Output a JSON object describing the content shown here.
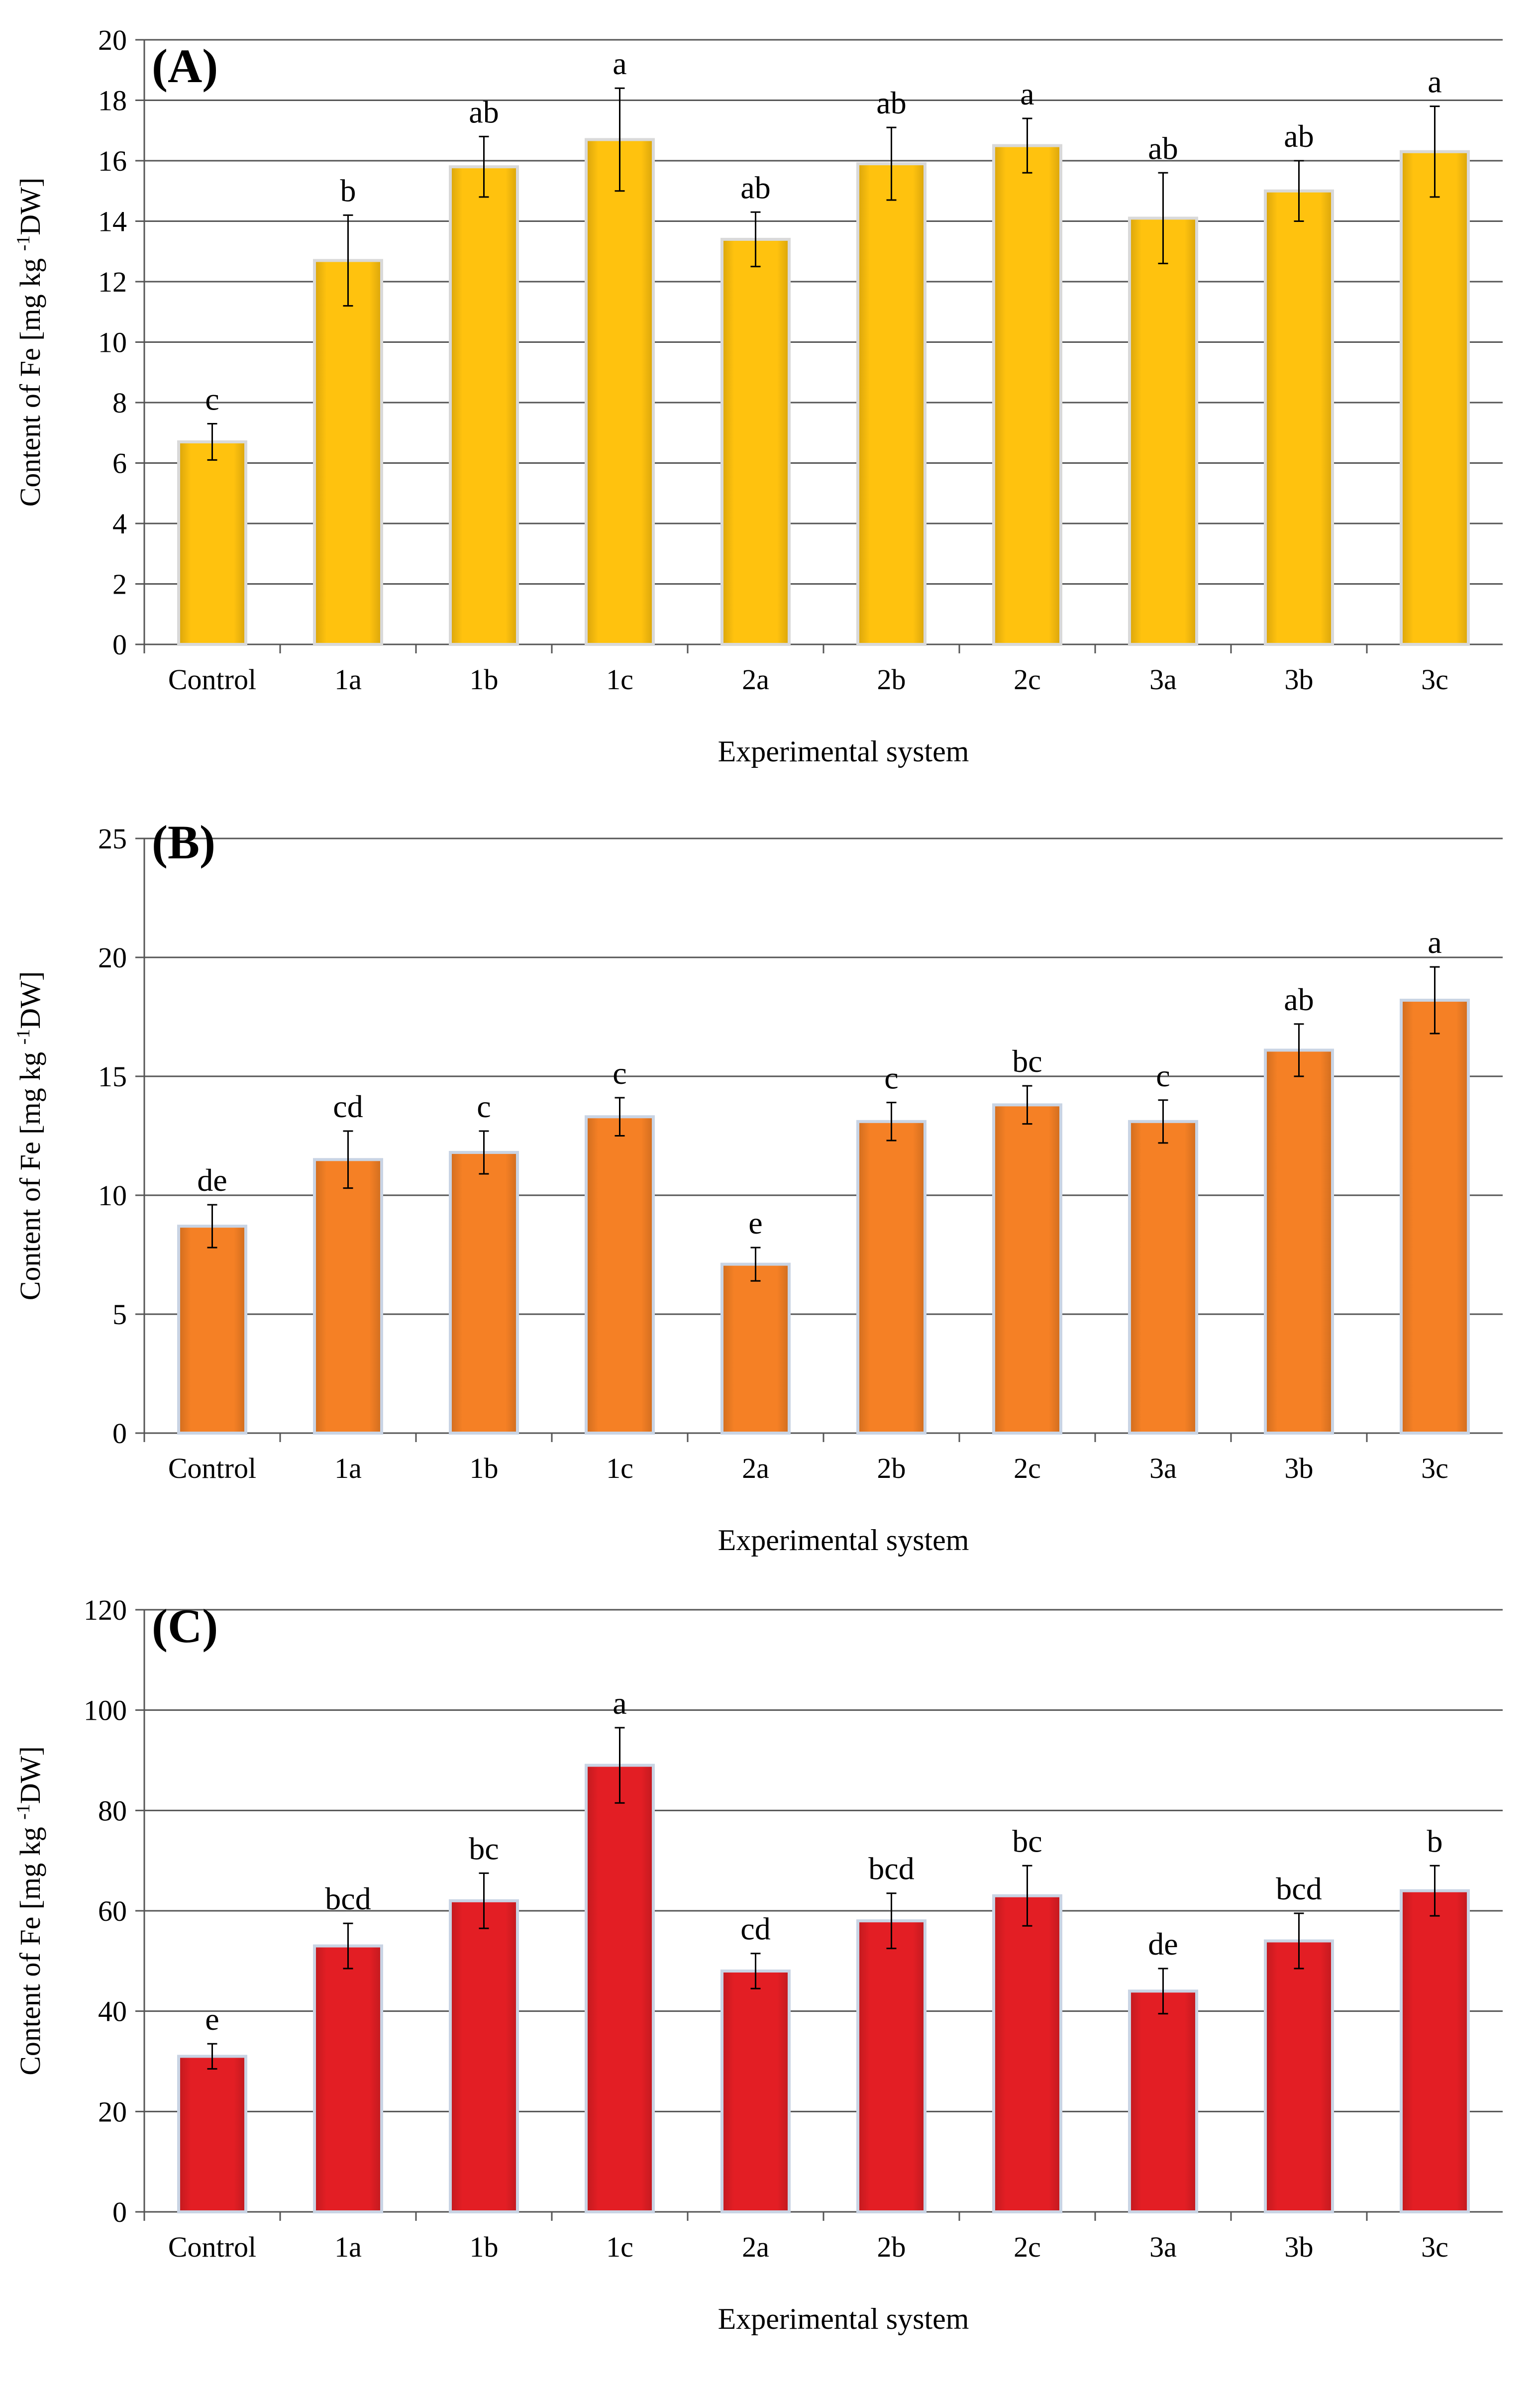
{
  "charts": [
    {
      "panel_label": "(A)",
      "title": "",
      "xlabel": "Experimental system",
      "ylabel_main": "Content of Fe [mg kg",
      "ylabel_sup": "-1",
      "ylabel_tail": "DW]",
      "ymax_label": "20",
      "color_fill": "#FFC20E",
      "color_edge": "#D9D9D9"
    },
    {
      "panel_label": "(B)",
      "title": "",
      "xlabel": "Experimental system",
      "ylabel_main": "Content of Fe [mg kg",
      "ylabel_sup": "-1",
      "ylabel_tail": "DW]",
      "color_fill": "#F58025",
      "color_edge": "#C9D4E4"
    },
    {
      "panel_label": "(C)",
      "title": "",
      "xlabel": "Experimental system",
      "ylabel_main": "Content of Fe [mg kg",
      "ylabel_sup": "-1",
      "ylabel_tail": "DW]",
      "color_fill": "#E31E24",
      "color_edge": "#C9D4E4"
    }
  ],
  "chart_data": [
    {
      "type": "bar",
      "panel": "(A)",
      "categories": [
        "Control",
        "1a",
        "1b",
        "1c",
        "2a",
        "2b",
        "2c",
        "3a",
        "3b",
        "3c"
      ],
      "values": [
        6.7,
        12.7,
        15.8,
        16.7,
        13.4,
        15.9,
        16.5,
        14.1,
        15.0,
        16.3
      ],
      "errors": [
        0.6,
        1.5,
        1.0,
        1.7,
        0.9,
        1.2,
        0.9,
        1.5,
        1.0,
        1.5
      ],
      "letters": [
        "c",
        "b",
        "ab",
        "a",
        "ab",
        "ab",
        "a",
        "ab",
        "ab",
        "a"
      ],
      "ylim": [
        0,
        20
      ],
      "yticks": [
        0,
        2,
        4,
        6,
        8,
        10,
        12,
        14,
        16,
        18,
        20
      ],
      "xlabel": "Experimental system",
      "ylabel": "Content of Fe [mg kg-1DW]",
      "grid": true
    },
    {
      "type": "bar",
      "panel": "(B)",
      "categories": [
        "Control",
        "1a",
        "1b",
        "1c",
        "2a",
        "2b",
        "2c",
        "3a",
        "3b",
        "3c"
      ],
      "values": [
        8.7,
        11.5,
        11.8,
        13.3,
        7.1,
        13.1,
        13.8,
        13.1,
        16.1,
        18.2
      ],
      "errors": [
        0.9,
        1.2,
        0.9,
        0.8,
        0.7,
        0.8,
        0.8,
        0.9,
        1.1,
        1.4
      ],
      "letters": [
        "de",
        "cd",
        "c",
        "c",
        "e",
        "c",
        "bc",
        "c",
        "ab",
        "a"
      ],
      "ylim": [
        0,
        25
      ],
      "yticks": [
        0,
        5,
        10,
        15,
        20,
        25
      ],
      "xlabel": "Experimental system",
      "ylabel": "Content of Fe [mg kg-1DW]",
      "grid": true
    },
    {
      "type": "bar",
      "panel": "(C)",
      "categories": [
        "Control",
        "1a",
        "1b",
        "1c",
        "2a",
        "2b",
        "2c",
        "3a",
        "3b",
        "3c"
      ],
      "values": [
        31,
        53,
        62,
        89,
        48,
        58,
        63,
        44,
        54,
        64
      ],
      "errors": [
        2.5,
        4.5,
        5.5,
        7.5,
        3.5,
        5.5,
        6.0,
        4.5,
        5.5,
        5.0
      ],
      "letters": [
        "e",
        "bcd",
        "bc",
        "a",
        "cd",
        "bcd",
        "bc",
        "de",
        "bcd",
        "b"
      ],
      "ylim": [
        0,
        120
      ],
      "yticks": [
        0,
        20,
        40,
        60,
        80,
        100,
        120
      ],
      "xlabel": "Experimental system",
      "ylabel": "Content of Fe [mg kg-1DW]",
      "grid": true
    }
  ]
}
